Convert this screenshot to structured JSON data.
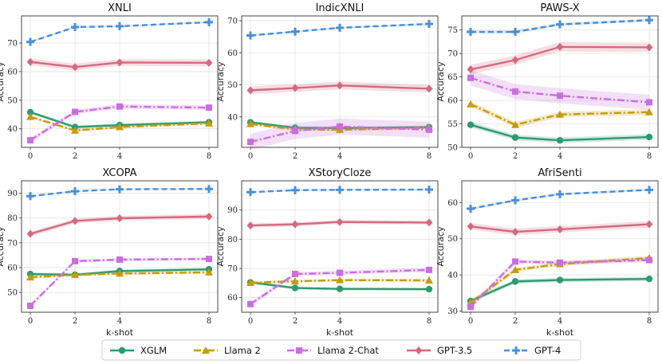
{
  "x_label": "k-shot",
  "y_label": "Accuracy",
  "series_styles": [
    {
      "name": "XGLM",
      "color": "#2e9a72",
      "dash": "",
      "marker": "circle"
    },
    {
      "name": "Llama 2",
      "color": "#c49c0a",
      "dash": "9,3,2,3",
      "marker": "triangle"
    },
    {
      "name": "Llama 2-Chat",
      "color": "#c96ee0",
      "dash": "9,3,2,3",
      "marker": "square"
    },
    {
      "name": "GPT-3.5",
      "color": "#d46a7e",
      "dash": "",
      "marker": "diamond"
    },
    {
      "name": "GPT-4",
      "color": "#4a8ed8",
      "dash": "7,4",
      "marker": "plus"
    }
  ],
  "chart_data": [
    {
      "type": "line",
      "title": "XNLI",
      "xlabel": "",
      "ylabel": "Accuracy",
      "x": [
        0,
        2,
        4,
        8
      ],
      "xticks": [
        "0",
        "2",
        "4",
        "8"
      ],
      "ylim": [
        33.5,
        79.5
      ],
      "yticks": [
        40,
        50,
        60,
        70
      ],
      "series": [
        {
          "name": "XGLM",
          "values": [
            45.8,
            40.6,
            41.3,
            42.3
          ],
          "band": 0.5
        },
        {
          "name": "Llama 2",
          "values": [
            44.2,
            39.4,
            40.6,
            41.9
          ],
          "band": 0.5
        },
        {
          "name": "Llama 2-Chat",
          "values": [
            36.0,
            45.9,
            47.8,
            47.4
          ],
          "band": 0.8
        },
        {
          "name": "GPT-3.5",
          "values": [
            63.4,
            61.6,
            63.2,
            63.1
          ],
          "band": 1.2
        },
        {
          "name": "GPT-4",
          "values": [
            70.4,
            75.6,
            75.9,
            77.3
          ],
          "band": 0.3
        }
      ]
    },
    {
      "type": "line",
      "title": "IndicXNLI",
      "xlabel": "",
      "ylabel": "Accuracy",
      "x": [
        0,
        2,
        4,
        8
      ],
      "xticks": [
        "0",
        "2",
        "4",
        "8"
      ],
      "ylim": [
        30.5,
        71.5
      ],
      "yticks": [
        40,
        50,
        60,
        70
      ],
      "series": [
        {
          "name": "XGLM",
          "values": [
            38.3,
            36.6,
            36.5,
            36.8
          ],
          "band": 0.5
        },
        {
          "name": "Llama 2",
          "values": [
            37.8,
            36.1,
            36.0,
            36.6
          ],
          "band": 0.5
        },
        {
          "name": "Llama 2-Chat",
          "values": [
            32.2,
            35.6,
            37.0,
            36.0
          ],
          "band": 2.5
        },
        {
          "name": "GPT-3.5",
          "values": [
            48.3,
            49.0,
            49.8,
            48.8
          ],
          "band": 1.2
        },
        {
          "name": "GPT-4",
          "values": [
            65.4,
            66.6,
            67.8,
            69.0
          ],
          "band": 0.3
        }
      ]
    },
    {
      "type": "line",
      "title": "PAWS-X",
      "xlabel": "",
      "ylabel": "Accuracy",
      "x": [
        0,
        2,
        4,
        8
      ],
      "xticks": [
        "0",
        "2",
        "4",
        "8"
      ],
      "ylim": [
        50,
        78
      ],
      "yticks": [
        50,
        55,
        60,
        65,
        70,
        75
      ],
      "series": [
        {
          "name": "XGLM",
          "values": [
            54.8,
            52.1,
            51.5,
            52.2
          ],
          "band": 0.6
        },
        {
          "name": "Llama 2",
          "values": [
            59.2,
            54.8,
            57.0,
            57.5
          ],
          "band": 0.6
        },
        {
          "name": "Llama 2-Chat",
          "values": [
            64.8,
            61.9,
            61.0,
            59.6
          ],
          "band": 1.6
        },
        {
          "name": "GPT-3.5",
          "values": [
            66.6,
            68.6,
            71.4,
            71.3
          ],
          "band": 1.0
        },
        {
          "name": "GPT-4",
          "values": [
            74.6,
            74.6,
            76.2,
            77.1
          ],
          "band": 0.3
        }
      ]
    },
    {
      "type": "line",
      "title": "XCOPA",
      "xlabel": "k-shot",
      "ylabel": "Accuracy",
      "x": [
        0,
        2,
        4,
        8
      ],
      "xticks": [
        "0",
        "2",
        "4",
        "8"
      ],
      "ylim": [
        42,
        95
      ],
      "yticks": [
        50,
        60,
        70,
        80,
        90
      ],
      "series": [
        {
          "name": "XGLM",
          "values": [
            57.4,
            57.1,
            58.6,
            59.3
          ],
          "band": 0.6
        },
        {
          "name": "Llama 2",
          "values": [
            56.1,
            57.1,
            57.6,
            58.1
          ],
          "band": 0.6
        },
        {
          "name": "Llama 2-Chat",
          "values": [
            44.6,
            62.6,
            63.2,
            63.5
          ],
          "band": 0.6
        },
        {
          "name": "GPT-3.5",
          "values": [
            73.6,
            78.8,
            79.9,
            80.6
          ],
          "band": 1.0
        },
        {
          "name": "GPT-4",
          "values": [
            88.8,
            90.8,
            91.6,
            91.7
          ],
          "band": 0.3
        }
      ]
    },
    {
      "type": "line",
      "title": "XStoryCloze",
      "xlabel": "k-shot",
      "ylabel": "Accuracy",
      "x": [
        0,
        2,
        4,
        8
      ],
      "xticks": [
        "0",
        "2",
        "4",
        "8"
      ],
      "ylim": [
        55,
        100
      ],
      "yticks": [
        60,
        70,
        80,
        90
      ],
      "series": [
        {
          "name": "XGLM",
          "values": [
            65.2,
            63.3,
            63.0,
            62.9
          ],
          "band": 0.5
        },
        {
          "name": "Llama 2",
          "values": [
            65.1,
            65.6,
            66.0,
            65.9
          ],
          "band": 0.5
        },
        {
          "name": "Llama 2-Chat",
          "values": [
            57.8,
            68.1,
            68.5,
            69.5
          ],
          "band": 0.7
        },
        {
          "name": "GPT-3.5",
          "values": [
            84.7,
            85.1,
            85.9,
            85.7
          ],
          "band": 0.7
        },
        {
          "name": "GPT-4",
          "values": [
            96.1,
            96.8,
            96.9,
            97.0
          ],
          "band": 0.3
        }
      ]
    },
    {
      "type": "line",
      "title": "AfriSenti",
      "xlabel": "k-shot",
      "ylabel": "Accuracy",
      "x": [
        0,
        2,
        4,
        8
      ],
      "xticks": [
        "0",
        "2",
        "4",
        "8"
      ],
      "ylim": [
        29.7,
        66
      ],
      "yticks": [
        30,
        40,
        50,
        60
      ],
      "series": [
        {
          "name": "XGLM",
          "values": [
            32.8,
            38.2,
            38.6,
            38.9
          ],
          "band": 0.6
        },
        {
          "name": "Llama 2",
          "values": [
            32.3,
            41.4,
            43.0,
            44.7
          ],
          "band": 0.6
        },
        {
          "name": "Llama 2-Chat",
          "values": [
            31.2,
            43.7,
            43.4,
            44.1
          ],
          "band": 0.6
        },
        {
          "name": "GPT-3.5",
          "values": [
            53.4,
            51.9,
            52.6,
            54.0
          ],
          "band": 0.9
        },
        {
          "name": "GPT-4",
          "values": [
            58.3,
            60.6,
            62.3,
            63.5
          ],
          "band": 0.3
        }
      ]
    }
  ]
}
